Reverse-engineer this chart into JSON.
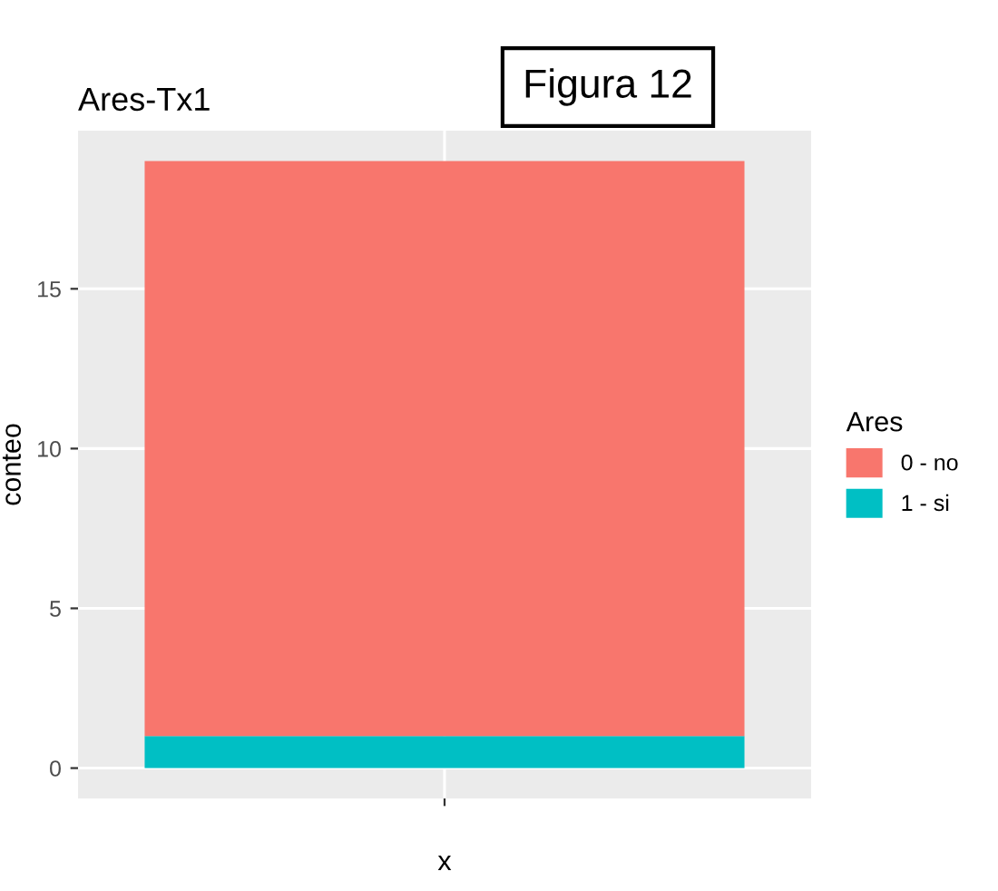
{
  "chart_data": {
    "type": "bar",
    "title": "Ares-Tx1",
    "xlabel": "x",
    "ylabel": "conteo",
    "legend_title": "Ares",
    "categories": [
      null
    ],
    "stacked": true,
    "series": [
      {
        "name": "1 - si",
        "color": "#00bfc4",
        "values": [
          1
        ]
      },
      {
        "name": "0 - no",
        "color": "#f8766d",
        "values": [
          18
        ]
      }
    ],
    "ylim": [
      -0.95,
      19.95
    ],
    "yticks": [
      0,
      5,
      10,
      15
    ],
    "grid": true,
    "legend": "right",
    "tick_labels": "y",
    "annotations": [
      "Figura 12"
    ]
  }
}
